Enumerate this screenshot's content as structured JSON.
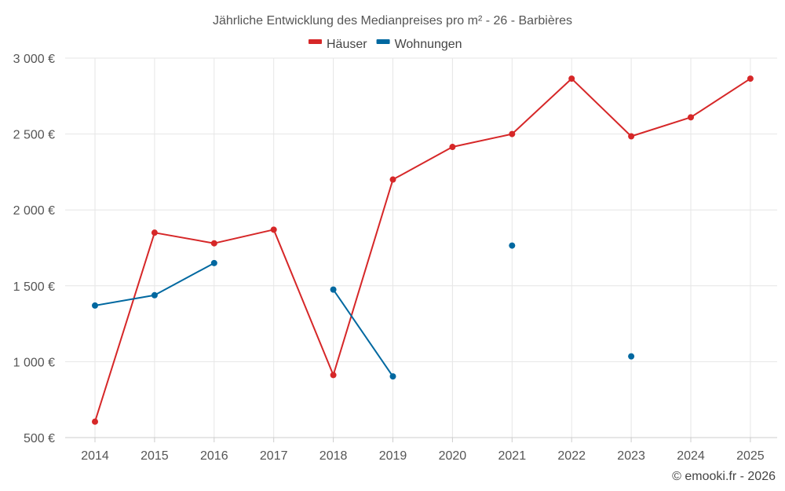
{
  "chart_data": {
    "type": "line",
    "title": "Jährliche Entwicklung des Medianpreises pro m² - 26 - Barbières",
    "categories": [
      "2014",
      "2015",
      "2016",
      "2017",
      "2018",
      "2019",
      "2020",
      "2021",
      "2022",
      "2023",
      "2024",
      "2025"
    ],
    "y_ticks": [
      "500 €",
      "1 000 €",
      "1 500 €",
      "2 000 €",
      "2 500 €",
      "3 000 €"
    ],
    "ylim": [
      500,
      3000
    ],
    "grid": true,
    "legend_position": "top-center",
    "series": [
      {
        "name": "Häuser",
        "color": "#d62728",
        "values": [
          605,
          1850,
          1780,
          1870,
          912,
          2200,
          2415,
          2500,
          2865,
          2485,
          2610,
          2865
        ]
      },
      {
        "name": "Wohnungen",
        "color": "#0068a0",
        "values": [
          1370,
          1438,
          1650,
          null,
          1475,
          903,
          null,
          1765,
          null,
          1035,
          null,
          null
        ]
      }
    ],
    "credit": "© emooki.fr - 2026"
  }
}
